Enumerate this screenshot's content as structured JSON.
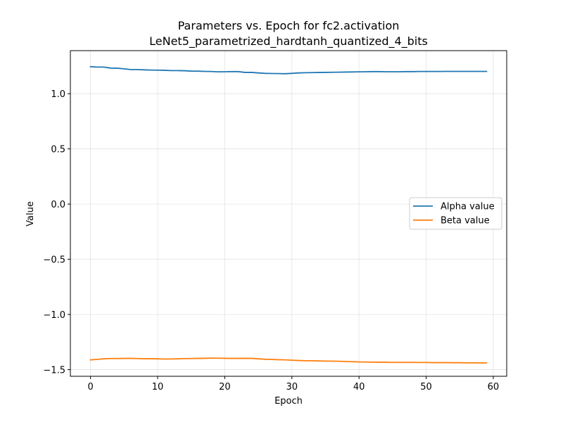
{
  "chart_data": {
    "type": "line",
    "title": "Parameters vs. Epoch for fc2.activation",
    "subtitle": "LeNet5_parametrized_hardtanh_quantized_4_bits",
    "xlabel": "Epoch",
    "ylabel": "Value",
    "xlim": [
      -3,
      62
    ],
    "ylim": [
      -1.56,
      1.39
    ],
    "xticks": [
      0,
      10,
      20,
      30,
      40,
      50,
      60
    ],
    "xtick_labels": [
      "0",
      "10",
      "20",
      "30",
      "40",
      "50",
      "60"
    ],
    "yticks": [
      -1.5,
      -1.0,
      -0.5,
      0.0,
      0.5,
      1.0
    ],
    "ytick_labels": [
      "−1.5",
      "−1.0",
      "−0.5",
      "0.0",
      "0.5",
      "1.0"
    ],
    "grid": true,
    "legend_position": "center-right",
    "series": [
      {
        "name": "Alpha value",
        "color": "#1f77b4",
        "x": [
          0,
          1,
          2,
          3,
          4,
          5,
          6,
          7,
          8,
          9,
          10,
          11,
          12,
          13,
          14,
          15,
          16,
          17,
          18,
          19,
          20,
          21,
          22,
          23,
          24,
          25,
          26,
          27,
          28,
          29,
          30,
          31,
          32,
          33,
          34,
          35,
          36,
          37,
          38,
          39,
          40,
          41,
          42,
          43,
          44,
          45,
          46,
          47,
          48,
          49,
          50,
          51,
          52,
          53,
          54,
          55,
          56,
          57,
          58,
          59
        ],
        "values": [
          1.245,
          1.241,
          1.241,
          1.232,
          1.231,
          1.225,
          1.219,
          1.219,
          1.216,
          1.214,
          1.213,
          1.212,
          1.209,
          1.209,
          1.208,
          1.205,
          1.204,
          1.202,
          1.201,
          1.198,
          1.199,
          1.2,
          1.2,
          1.193,
          1.193,
          1.188,
          1.184,
          1.183,
          1.182,
          1.181,
          1.184,
          1.188,
          1.19,
          1.191,
          1.192,
          1.193,
          1.194,
          1.195,
          1.196,
          1.197,
          1.198,
          1.199,
          1.2,
          1.2,
          1.199,
          1.199,
          1.199,
          1.2,
          1.2,
          1.201,
          1.201,
          1.201,
          1.201,
          1.202,
          1.202,
          1.202,
          1.202,
          1.202,
          1.202,
          1.202
        ]
      },
      {
        "name": "Beta value",
        "color": "#ff7f0e",
        "x": [
          0,
          1,
          2,
          3,
          4,
          5,
          6,
          7,
          8,
          9,
          10,
          11,
          12,
          13,
          14,
          15,
          16,
          17,
          18,
          19,
          20,
          21,
          22,
          23,
          24,
          25,
          26,
          27,
          28,
          29,
          30,
          31,
          32,
          33,
          34,
          35,
          36,
          37,
          38,
          39,
          40,
          41,
          42,
          43,
          44,
          45,
          46,
          47,
          48,
          49,
          50,
          51,
          52,
          53,
          54,
          55,
          56,
          57,
          58,
          59
        ],
        "values": [
          -1.411,
          -1.407,
          -1.401,
          -1.399,
          -1.399,
          -1.398,
          -1.398,
          -1.399,
          -1.401,
          -1.401,
          -1.402,
          -1.404,
          -1.403,
          -1.402,
          -1.4,
          -1.399,
          -1.398,
          -1.397,
          -1.395,
          -1.396,
          -1.397,
          -1.398,
          -1.398,
          -1.397,
          -1.398,
          -1.402,
          -1.406,
          -1.407,
          -1.41,
          -1.411,
          -1.414,
          -1.417,
          -1.419,
          -1.42,
          -1.421,
          -1.422,
          -1.423,
          -1.424,
          -1.426,
          -1.428,
          -1.43,
          -1.431,
          -1.432,
          -1.433,
          -1.433,
          -1.434,
          -1.434,
          -1.434,
          -1.434,
          -1.435,
          -1.435,
          -1.436,
          -1.436,
          -1.436,
          -1.437,
          -1.437,
          -1.438,
          -1.438,
          -1.439,
          -1.439
        ]
      }
    ]
  }
}
